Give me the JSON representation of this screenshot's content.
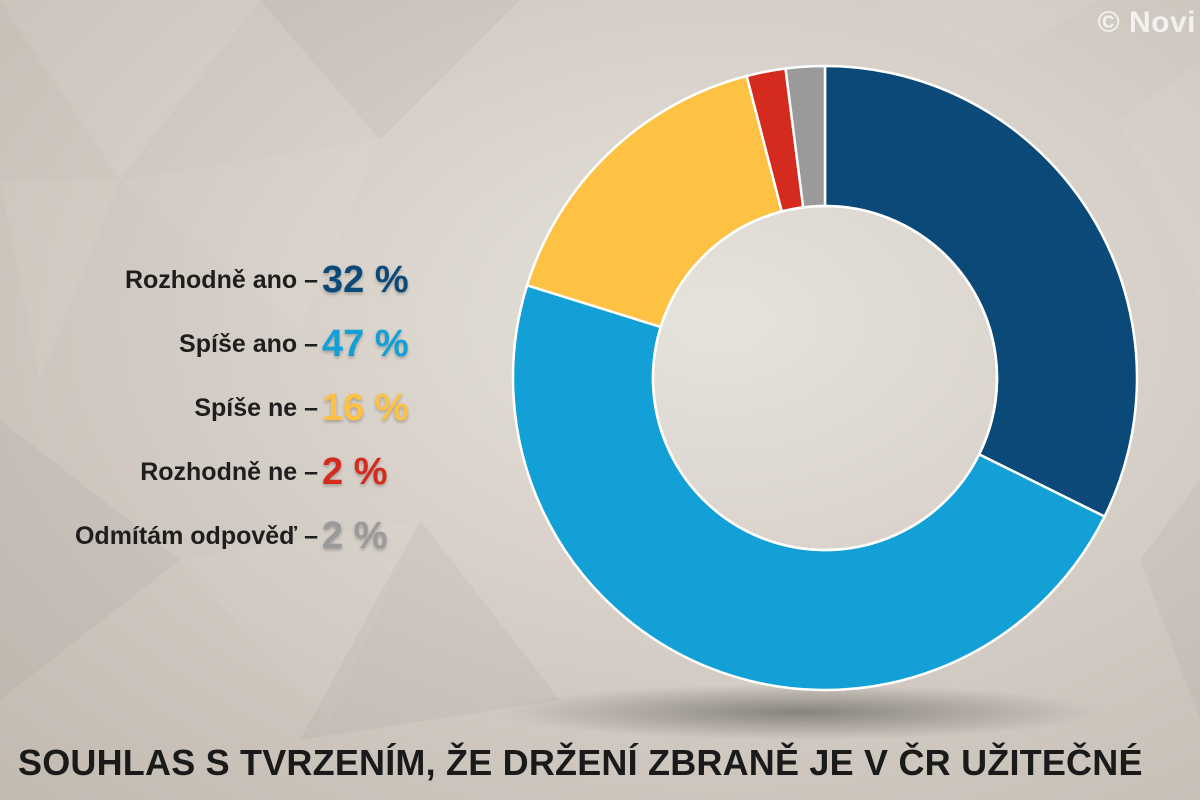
{
  "watermark": "© Novi",
  "chart_data": {
    "type": "pie",
    "variant": "donut",
    "title": "SOUHLAS S TVRZENÍM, ŽE DRŽENÍ ZBRANĚ JE V ČR UŽITEČNÉ",
    "unit": "%",
    "categories": [
      "Rozhodně ano",
      "Spíše ano",
      "Spíše ne",
      "Rozhodně ne",
      "Odmítám odpověď"
    ],
    "values": [
      32,
      47,
      16,
      2,
      2
    ],
    "value_labels": [
      "32 %",
      "47 %",
      "16 %",
      "2 %",
      "2 %"
    ],
    "colors": [
      "#0b4a78",
      "#12a0d6",
      "#fdc143",
      "#d52a1e",
      "#9a9a9a"
    ],
    "legend_placement": "left",
    "separator": "–"
  }
}
